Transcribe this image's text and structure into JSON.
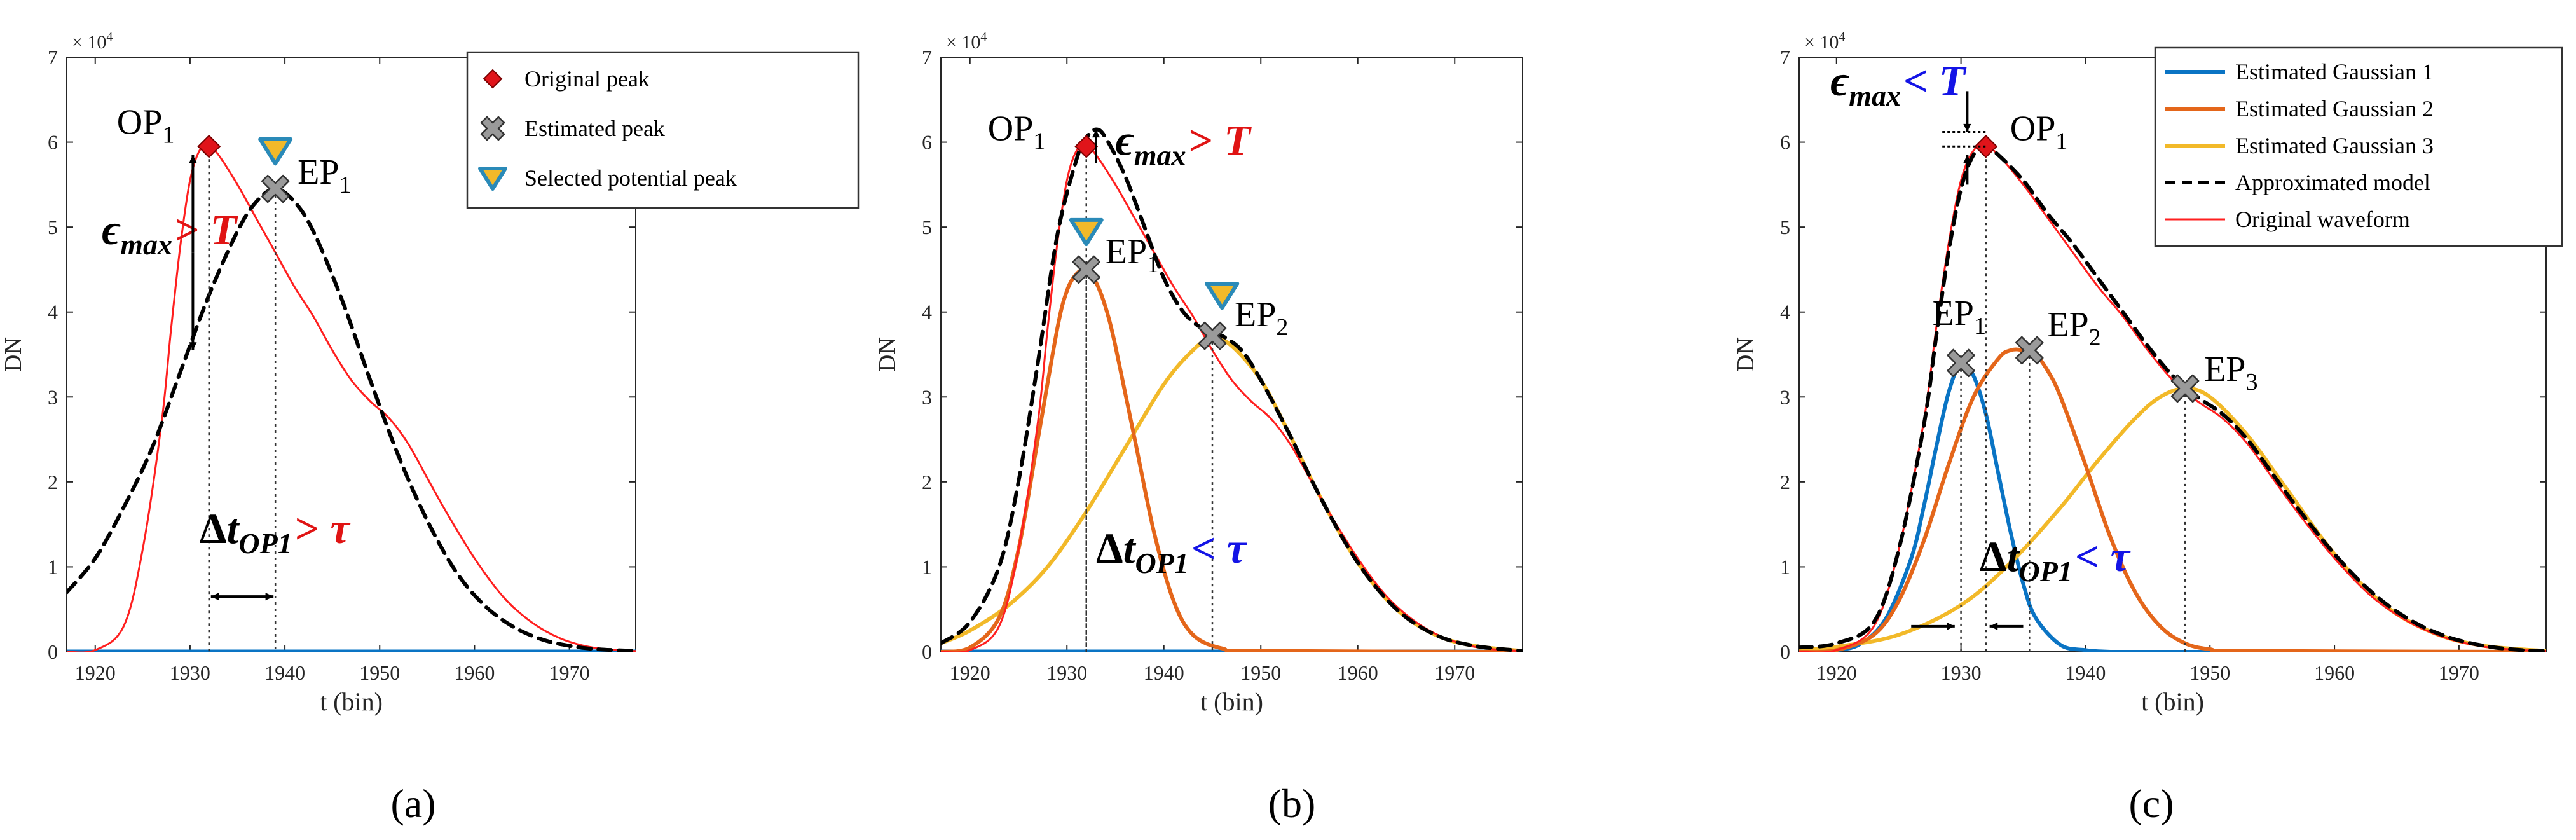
{
  "colors": {
    "original": "#ff1f1f",
    "approx": "#000000",
    "gauss1": "#0a74c4",
    "gauss2": "#e4661a",
    "gauss3": "#f2b929",
    "red_marker": "#e0141a",
    "x_marker": "#9a9a9a",
    "tri_fill": "#f2b929",
    "tri_stroke": "#2a8ab8",
    "blue_text": "#1414e6",
    "red_text": "#e01414"
  },
  "chart_data": [
    {
      "type": "line",
      "panel_label": "(a)",
      "xlabel": "t (bin)",
      "ylabel": "DN",
      "y_exponent": "× 10^4",
      "x_ticks": [
        "1920",
        "1930",
        "1940",
        "1950",
        "1960",
        "1970"
      ],
      "y_ticks": [
        "0",
        "1",
        "2",
        "3",
        "4",
        "5",
        "6",
        "7"
      ],
      "xlim": [
        1917,
        1977
      ],
      "ylim": [
        0,
        7
      ],
      "legend": [
        "Original peak",
        "Estimated peak",
        "Selected potential peak"
      ],
      "series": [
        {
          "name": "Original waveform",
          "x": [
            1917,
            1920,
            1923,
            1925,
            1927,
            1928,
            1929,
            1930,
            1931,
            1932,
            1933,
            1935,
            1937,
            1939,
            1941,
            1943,
            1945,
            1947,
            1949,
            1951,
            1953,
            1955,
            1957,
            1960,
            1963,
            1966,
            1969,
            1972,
            1975,
            1977
          ],
          "y": [
            0,
            0.02,
            0.3,
            1.2,
            2.7,
            3.8,
            4.8,
            5.55,
            5.9,
            5.95,
            5.85,
            5.5,
            5.1,
            4.7,
            4.3,
            3.95,
            3.55,
            3.2,
            2.95,
            2.75,
            2.45,
            2.05,
            1.65,
            1.1,
            0.65,
            0.35,
            0.16,
            0.06,
            0.02,
            0.01
          ]
        },
        {
          "name": "Estimated Gaussian 1",
          "x": [
            1917,
            1977
          ],
          "y": [
            0,
            0
          ]
        },
        {
          "name": "Approximated model",
          "x": [
            1917,
            1920,
            1923,
            1926,
            1929,
            1932,
            1935,
            1937,
            1939,
            1941,
            1943,
            1946,
            1949,
            1952,
            1955,
            1958,
            1961,
            1964,
            1967,
            1970,
            1973,
            1977
          ],
          "y": [
            0.7,
            1.1,
            1.7,
            2.4,
            3.3,
            4.2,
            4.95,
            5.3,
            5.45,
            5.3,
            4.95,
            4.15,
            3.2,
            2.3,
            1.55,
            0.95,
            0.55,
            0.3,
            0.15,
            0.07,
            0.03,
            0.01
          ]
        }
      ],
      "markers": [
        {
          "type": "original-peak",
          "x": 1932,
          "y": 5.95,
          "label": "OP",
          "sub": "1"
        },
        {
          "type": "estimated-peak",
          "x": 1939,
          "y": 5.45,
          "label": "EP",
          "sub": "1"
        },
        {
          "type": "selected-potential-peak",
          "x": 1939,
          "y": 5.9
        }
      ],
      "annotations": {
        "epsilon": {
          "main": "ϵ",
          "sub": "max",
          "op": ">",
          "rhs": "T"
        },
        "delta": {
          "main": "Δt",
          "sub": "OP1",
          "op": ">",
          "rhs": "τ"
        }
      }
    },
    {
      "type": "line",
      "panel_label": "(b)",
      "xlabel": "t (bin)",
      "ylabel": "DN",
      "y_exponent": "× 10^4",
      "x_ticks": [
        "1920",
        "1930",
        "1940",
        "1950",
        "1960",
        "1970"
      ],
      "y_ticks": [
        "0",
        "1",
        "2",
        "3",
        "4",
        "5",
        "6",
        "7"
      ],
      "xlim": [
        1917,
        1977
      ],
      "ylim": [
        0,
        7
      ],
      "series": [
        {
          "name": "Original waveform",
          "x": [
            1917,
            1920,
            1923,
            1925,
            1927,
            1928,
            1929,
            1930,
            1931,
            1932,
            1933,
            1935,
            1937,
            1939,
            1941,
            1943,
            1945,
            1947,
            1949,
            1951,
            1953,
            1955,
            1957,
            1960,
            1963,
            1966,
            1969,
            1972,
            1975,
            1977
          ],
          "y": [
            0,
            0.02,
            0.3,
            1.2,
            2.7,
            3.8,
            4.8,
            5.55,
            5.9,
            5.95,
            5.85,
            5.5,
            5.1,
            4.7,
            4.3,
            3.95,
            3.55,
            3.2,
            2.95,
            2.75,
            2.45,
            2.05,
            1.65,
            1.1,
            0.65,
            0.35,
            0.16,
            0.06,
            0.02,
            0.01
          ]
        },
        {
          "name": "Estimated Gaussian 1",
          "x": [
            1917,
            1977
          ],
          "y": [
            0,
            0
          ]
        },
        {
          "name": "Estimated Gaussian 2",
          "x": [
            1917,
            1920,
            1923,
            1925,
            1927,
            1929,
            1930,
            1931,
            1932,
            1933,
            1934,
            1935,
            1937,
            1939,
            1941,
            1943,
            1946,
            1950,
            1977
          ],
          "y": [
            0,
            0.05,
            0.4,
            1.2,
            2.5,
            3.8,
            4.25,
            4.45,
            4.5,
            4.35,
            4.05,
            3.6,
            2.5,
            1.4,
            0.6,
            0.2,
            0.04,
            0.01,
            0
          ]
        },
        {
          "name": "Estimated Gaussian 3",
          "x": [
            1917,
            1920,
            1924,
            1928,
            1932,
            1936,
            1940,
            1943,
            1945,
            1947,
            1950,
            1953,
            1956,
            1960,
            1964,
            1968,
            1972,
            1977
          ],
          "y": [
            0.1,
            0.25,
            0.55,
            1.0,
            1.65,
            2.4,
            3.15,
            3.55,
            3.7,
            3.6,
            3.2,
            2.55,
            1.85,
            1.05,
            0.5,
            0.2,
            0.07,
            0.01
          ]
        },
        {
          "name": "Approximated model",
          "x": [
            1917,
            1920,
            1923,
            1925,
            1927,
            1929,
            1931,
            1932,
            1933,
            1934,
            1936,
            1938,
            1940,
            1942,
            1944,
            1945,
            1946,
            1948,
            1950,
            1953,
            1956,
            1960,
            1964,
            1968,
            1972,
            1977
          ],
          "y": [
            0.1,
            0.35,
            1.0,
            2.0,
            3.4,
            4.9,
            5.8,
            6.05,
            6.15,
            6.05,
            5.6,
            5.0,
            4.4,
            4.0,
            3.8,
            3.75,
            3.72,
            3.55,
            3.2,
            2.55,
            1.85,
            1.05,
            0.5,
            0.2,
            0.07,
            0.01
          ]
        }
      ],
      "markers": [
        {
          "type": "original-peak",
          "x": 1932,
          "y": 5.95,
          "label": "OP",
          "sub": "1"
        },
        {
          "type": "estimated-peak",
          "x": 1932,
          "y": 4.5,
          "label": "EP",
          "sub": "1"
        },
        {
          "type": "estimated-peak",
          "x": 1945,
          "y": 3.72,
          "label": "EP",
          "sub": "2"
        },
        {
          "type": "selected-potential-peak",
          "x": 1932,
          "y": 4.95
        },
        {
          "type": "selected-potential-peak",
          "x": 1946,
          "y": 4.2
        }
      ],
      "annotations": {
        "epsilon": {
          "main": "ϵ",
          "sub": "max",
          "op": ">",
          "rhs": "T"
        },
        "delta": {
          "main": "Δt",
          "sub": "OP1",
          "op": "<",
          "rhs": "τ"
        }
      }
    },
    {
      "type": "line",
      "panel_label": "(c)",
      "xlabel": "t (bin)",
      "ylabel": "DN",
      "y_exponent": "× 10^4",
      "x_ticks": [
        "1920",
        "1930",
        "1940",
        "1950",
        "1960",
        "1970"
      ],
      "y_ticks": [
        "0",
        "1",
        "2",
        "3",
        "4",
        "5",
        "6",
        "7"
      ],
      "xlim": [
        1917,
        1977
      ],
      "ylim": [
        0,
        7
      ],
      "legend": [
        "Estimated Gaussian 1",
        "Estimated Gaussian 2",
        "Estimated Gaussian 3",
        "Approximated model",
        "Original waveform"
      ],
      "series": [
        {
          "name": "Original waveform",
          "x": [
            1917,
            1920,
            1923,
            1925,
            1927,
            1928,
            1929,
            1930,
            1931,
            1932,
            1933,
            1935,
            1937,
            1939,
            1941,
            1943,
            1945,
            1947,
            1949,
            1951,
            1953,
            1955,
            1957,
            1960,
            1963,
            1966,
            1969,
            1972,
            1975,
            1977
          ],
          "y": [
            0,
            0.02,
            0.3,
            1.2,
            2.7,
            3.8,
            4.8,
            5.55,
            5.9,
            5.95,
            5.85,
            5.5,
            5.1,
            4.7,
            4.3,
            3.95,
            3.55,
            3.2,
            2.95,
            2.75,
            2.45,
            2.05,
            1.65,
            1.1,
            0.65,
            0.35,
            0.16,
            0.06,
            0.02,
            0.01
          ]
        },
        {
          "name": "Estimated Gaussian 1",
          "x": [
            1917,
            1920,
            1922,
            1924,
            1926,
            1927,
            1928,
            1929,
            1930,
            1931,
            1932,
            1933,
            1934,
            1935,
            1936,
            1938,
            1940,
            1942,
            1945,
            1977
          ],
          "y": [
            0,
            0.02,
            0.1,
            0.4,
            1.1,
            1.7,
            2.4,
            3.05,
            3.4,
            3.25,
            2.8,
            2.1,
            1.4,
            0.8,
            0.4,
            0.08,
            0.02,
            0,
            0,
            0
          ]
        },
        {
          "name": "Estimated Gaussian 2",
          "x": [
            1917,
            1920,
            1923,
            1925,
            1927,
            1929,
            1931,
            1933,
            1934,
            1935,
            1936,
            1937,
            1938,
            1940,
            1942,
            1944,
            1946,
            1948,
            1950,
            1953,
            1977
          ],
          "y": [
            0,
            0.02,
            0.2,
            0.6,
            1.3,
            2.2,
            3.0,
            3.45,
            3.55,
            3.55,
            3.5,
            3.3,
            3.0,
            2.2,
            1.35,
            0.7,
            0.3,
            0.1,
            0.03,
            0.01,
            0
          ]
        },
        {
          "name": "Estimated Gaussian 3",
          "x": [
            1917,
            1920,
            1925,
            1930,
            1934,
            1938,
            1941,
            1944,
            1946,
            1948,
            1950,
            1953,
            1956,
            1960,
            1964,
            1968,
            1972,
            1977
          ],
          "y": [
            0.02,
            0.06,
            0.2,
            0.55,
            1.05,
            1.7,
            2.25,
            2.75,
            3.0,
            3.1,
            3.0,
            2.55,
            1.95,
            1.15,
            0.55,
            0.22,
            0.07,
            0.01
          ]
        },
        {
          "name": "Approximated model",
          "x": [
            1917,
            1920,
            1923,
            1925,
            1927,
            1928,
            1929,
            1930,
            1931,
            1932,
            1933,
            1935,
            1937,
            1939,
            1941,
            1943,
            1945,
            1947,
            1949,
            1951,
            1953,
            1955,
            1957,
            1960,
            1963,
            1966,
            1969,
            1972,
            1975,
            1977
          ],
          "y": [
            0.05,
            0.1,
            0.35,
            1.2,
            2.65,
            3.7,
            4.7,
            5.45,
            5.85,
            5.95,
            5.85,
            5.55,
            5.15,
            4.8,
            4.4,
            4.0,
            3.6,
            3.25,
            3.0,
            2.8,
            2.5,
            2.1,
            1.7,
            1.15,
            0.7,
            0.38,
            0.18,
            0.07,
            0.02,
            0.01
          ]
        }
      ],
      "markers": [
        {
          "type": "original-peak",
          "x": 1932,
          "y": 5.95,
          "label": "OP",
          "sub": "1"
        },
        {
          "type": "estimated-peak",
          "x": 1930,
          "y": 3.4,
          "label": "EP",
          "sub": "1"
        },
        {
          "type": "estimated-peak",
          "x": 1935.5,
          "y": 3.55,
          "label": "EP",
          "sub": "2"
        },
        {
          "type": "estimated-peak",
          "x": 1948,
          "y": 3.1,
          "label": "EP",
          "sub": "3"
        }
      ],
      "annotations": {
        "epsilon": {
          "main": "ϵ",
          "sub": "max",
          "op": "<",
          "rhs": "T"
        },
        "delta": {
          "main": "Δt",
          "sub": "OP1",
          "op": "<",
          "rhs": "τ"
        }
      }
    }
  ]
}
